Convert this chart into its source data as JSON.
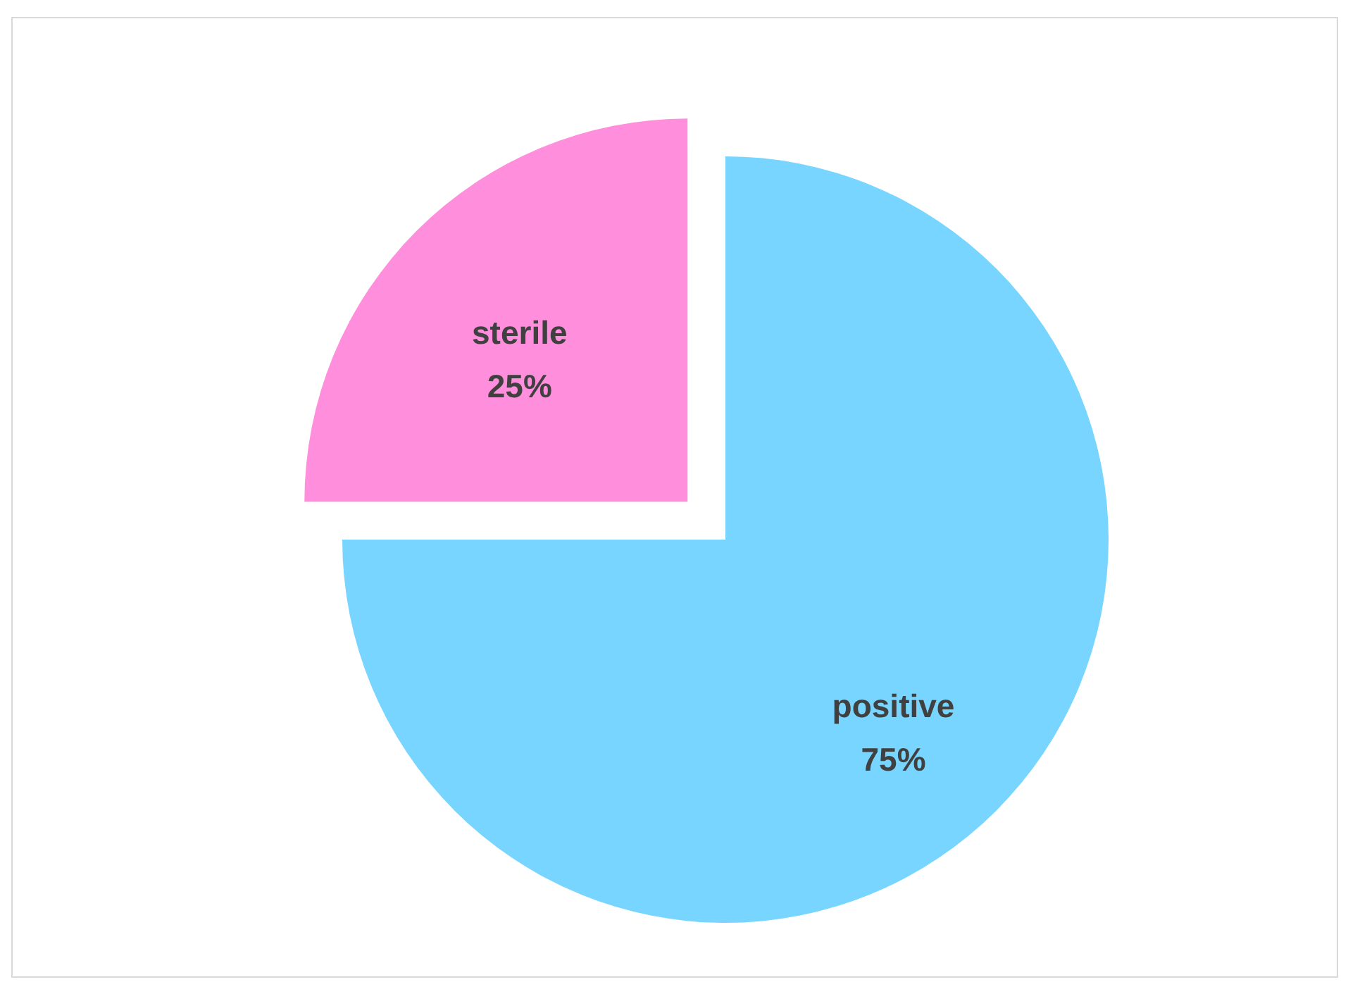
{
  "chart_data": {
    "type": "pie",
    "categories": [
      "positive",
      "sterile"
    ],
    "values": [
      75,
      25
    ],
    "colors": [
      "#77d5ff",
      "#ff8edc"
    ],
    "value_labels": [
      "75%",
      "25%"
    ]
  }
}
